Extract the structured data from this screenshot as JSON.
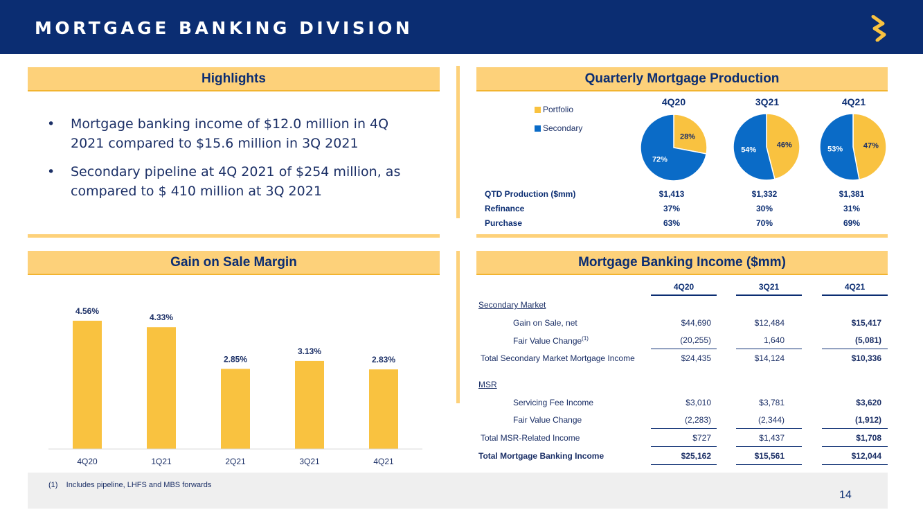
{
  "header": {
    "title": "MORTGAGE BANKING DIVISION"
  },
  "colors": {
    "navy": "#0b2d72",
    "gold": "#fdd17a",
    "portfolio": "#f9c240",
    "secondary": "#0a6bc7"
  },
  "highlights": {
    "title": "Highlights",
    "bullets": [
      "Mortgage banking income of $12.0 million in 4Q 2021 compared to $15.6 million in 3Q 2021",
      "Secondary pipeline at 4Q 2021 of $254 million, as compared to $ 410 million at 3Q 2021"
    ]
  },
  "production": {
    "title": "Quarterly Mortgage Production",
    "legend": [
      "Portfolio",
      "Secondary"
    ],
    "quarters": [
      "4Q20",
      "3Q21",
      "4Q21"
    ],
    "pies": [
      {
        "portfolio": 28,
        "secondary": 72,
        "portfolio_label": "28%",
        "secondary_label": "72%"
      },
      {
        "portfolio": 46,
        "secondary": 54,
        "portfolio_label": "46%",
        "secondary_label": "54%"
      },
      {
        "portfolio": 47,
        "secondary": 53,
        "portfolio_label": "47%",
        "secondary_label": "53%"
      }
    ],
    "rows": [
      {
        "label": "QTD Production ($mm)",
        "values": [
          "$1,413",
          "$1,332",
          "$1,381"
        ]
      },
      {
        "label": "Refinance",
        "values": [
          "37%",
          "30%",
          "31%"
        ]
      },
      {
        "label": "Purchase",
        "values": [
          "63%",
          "70%",
          "69%"
        ]
      }
    ]
  },
  "gain_on_sale": {
    "title": "Gain on Sale Margin"
  },
  "chart_data": {
    "type": "bar",
    "title": "Gain on Sale Margin",
    "categories": [
      "4Q20",
      "1Q21",
      "2Q21",
      "3Q21",
      "4Q21"
    ],
    "values": [
      4.56,
      4.33,
      2.85,
      3.13,
      2.83
    ],
    "data_labels": [
      "4.56%",
      "4.33%",
      "2.85%",
      "3.13%",
      "2.83%"
    ],
    "ylim": [
      0,
      5
    ],
    "grid": false
  },
  "income": {
    "title": "Mortgage Banking Income ($mm)",
    "columns": [
      "4Q20",
      "3Q21",
      "4Q21"
    ],
    "secondary_label": "Secondary Market",
    "msr_label": "MSR",
    "rows": {
      "gain": {
        "label": "Gain on Sale, net",
        "values": [
          "$44,690",
          "$12,484",
          "$15,417"
        ]
      },
      "fv1": {
        "label": "Fair Value Change",
        "sup": "(1)",
        "values": [
          "(20,255)",
          "1,640",
          "(5,081)"
        ]
      },
      "total_sec": {
        "label": "Total Secondary Market Mortgage Income",
        "values": [
          "$24,435",
          "$14,124",
          "$10,336"
        ]
      },
      "servicing": {
        "label": "Servicing Fee Income",
        "values": [
          "$3,010",
          "$3,781",
          "$3,620"
        ]
      },
      "fv2": {
        "label": "Fair Value Change",
        "values": [
          "(2,283)",
          "(2,344)",
          "(1,912)"
        ]
      },
      "total_msr": {
        "label": "Total MSR-Related Income",
        "values": [
          "$727",
          "$1,437",
          "$1,708"
        ]
      },
      "total": {
        "label": "Total Mortgage Banking Income",
        "values": [
          "$25,162",
          "$15,561",
          "$12,044"
        ]
      }
    }
  },
  "footnote": "(1)    Includes pipeline, LHFS and MBS forwards",
  "page_number": "14"
}
